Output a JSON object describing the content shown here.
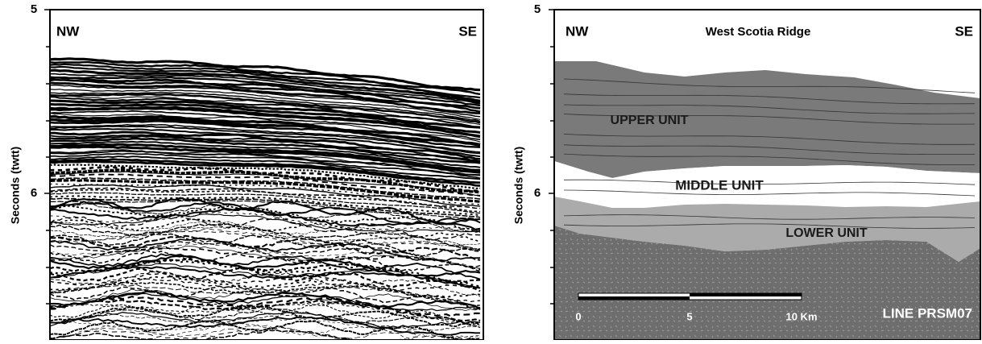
{
  "panels": [
    {
      "y_label": "Seconds (twtt)",
      "y_ticks": [
        "5",
        "6"
      ],
      "left_label": "NW",
      "right_label": "SE"
    },
    {
      "y_label": "Seconds (twtt)",
      "y_ticks": [
        "5",
        "6"
      ],
      "left_label": "NW",
      "title": "West  Scotia  Ridge",
      "right_label": "SE",
      "units": [
        "UPPER UNIT",
        "MIDDLE UNIT",
        "LOWER UNIT"
      ],
      "scale_labels": [
        "0",
        "5",
        "10 Km"
      ],
      "line_name": "LINE  PRSM07"
    }
  ]
}
